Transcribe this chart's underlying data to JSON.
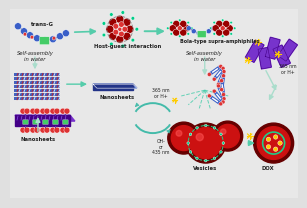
{
  "bg_color": "#e8e8e8",
  "labels": {
    "trans_g": "trans-G",
    "host_guest": "Host-guest interaction",
    "bola": "Bola-type supra-amphiphiles",
    "self_assembly1": "Self-assembly\nin water",
    "nanosheets1": "Nanosheets",
    "nanosheets2": "Nanosheets",
    "self_assembly2": "Self-assembly\nin water",
    "nm365_1": "365 nm\nor H+",
    "oh_435": "OH-\nor\n435 nm",
    "vesicles": "Vesicles",
    "dox": "DOX",
    "nm365_2": "365 nm\nor H+"
  },
  "colors": {
    "bg": "#e0e0e0",
    "blue_sphere": "#3a5fc8",
    "green_block": "#44cc66",
    "red_sphere": "#dd3333",
    "dark_red": "#990000",
    "cyan_dot": "#00cc88",
    "teal_arrow": "#55ccaa",
    "light_arrow": "#99ddcc",
    "nanosheet_blue": "#3355bb",
    "nanosheet_dark": "#223388",
    "nanosheet_purple": "#7733cc",
    "purple_dark": "#440088",
    "white": "#ffffff",
    "yellow": "#ffcc00",
    "text": "#222222",
    "vesicle_outer": "#660000",
    "vesicle_inner": "#cc1111",
    "line_dark": "#222255"
  }
}
